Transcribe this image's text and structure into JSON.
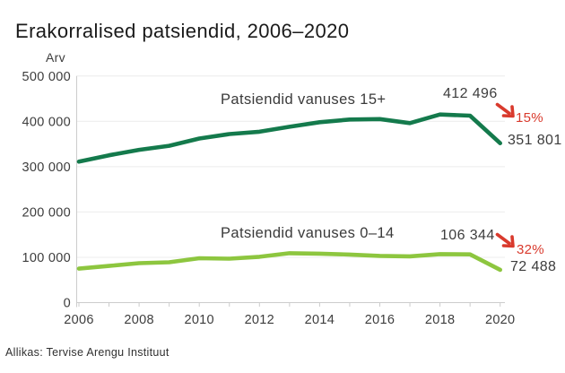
{
  "title": "Erakorralised patsiendid, 2006–2020",
  "y_axis_unit": "Arv",
  "source": "Allikas: Tervise Arengu Instituut",
  "colors": {
    "series_15plus": "#147a4c",
    "series_0_14": "#8dc63f",
    "decline_red": "#d93a2d",
    "grid": "#ececec",
    "axis_line": "#cccccc",
    "tick_text": "#3d3d3d"
  },
  "chart_data": {
    "type": "line",
    "x": [
      2006,
      2007,
      2008,
      2009,
      2010,
      2011,
      2012,
      2013,
      2014,
      2015,
      2016,
      2017,
      2018,
      2019,
      2020
    ],
    "series": [
      {
        "name": "Patsiendid vanuses 15+",
        "color": "#147a4c",
        "values": [
          311000,
          325000,
          337000,
          346000,
          362000,
          372000,
          377000,
          388000,
          398000,
          404000,
          405000,
          396000,
          415000,
          412496,
          351801
        ]
      },
      {
        "name": "Patsiendid vanuses 0–14",
        "color": "#8dc63f",
        "values": [
          75000,
          81000,
          87000,
          89000,
          98000,
          97000,
          101000,
          109000,
          108000,
          106000,
          103000,
          102000,
          107000,
          106344,
          72488
        ]
      }
    ],
    "title": "Erakorralised patsiendid, 2006–2020",
    "xlabel": "",
    "ylabel": "Arv",
    "ylim": [
      0,
      500000
    ],
    "grid": "horizontal",
    "legend_position": "inline-labels",
    "y_ticks": [
      "0",
      "100 000",
      "200 000",
      "300 000",
      "400 000",
      "500 000"
    ],
    "y_tick_values": [
      0,
      100000,
      200000,
      300000,
      400000,
      500000
    ],
    "x_tick_labels": [
      "2006",
      "2008",
      "2010",
      "2012",
      "2014",
      "2016",
      "2018",
      "2020"
    ]
  },
  "annotations": {
    "series1_label": "Patsiendid vanuses 15+",
    "series1_peak_value": "412 496",
    "series1_drop_pct": "15%",
    "series1_end_value": "351 801",
    "series2_label": "Patsiendid vanuses 0–14",
    "series2_peak_value": "106 344",
    "series2_drop_pct": "32%",
    "series2_end_value": "72 488"
  }
}
